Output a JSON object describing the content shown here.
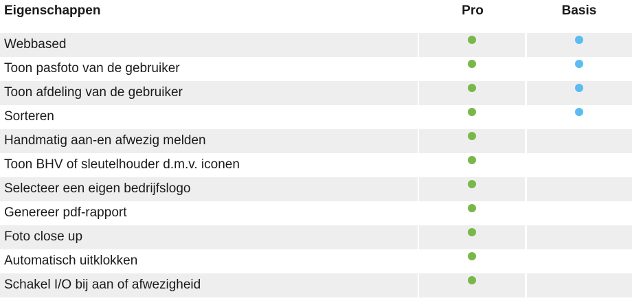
{
  "header": {
    "feature": "Eigenschappen",
    "pro": "Pro",
    "basis": "Basis"
  },
  "colors": {
    "pro_dot": "#7ab648",
    "basis_dot": "#5bbcf0",
    "row_shade": "#eeeeee"
  },
  "rows": [
    {
      "label": "Webbased",
      "pro": true,
      "basis": true
    },
    {
      "label": "Toon pasfoto van de gebruiker",
      "pro": true,
      "basis": true
    },
    {
      "label": "Toon afdeling van de gebruiker",
      "pro": true,
      "basis": true
    },
    {
      "label": "Sorteren",
      "pro": true,
      "basis": true
    },
    {
      "label": "Handmatig aan-en afwezig melden",
      "pro": true,
      "basis": false
    },
    {
      "label": "Toon BHV of sleutelhouder d.m.v. iconen",
      "pro": true,
      "basis": false
    },
    {
      "label": "Selecteer een eigen bedrijfslogo",
      "pro": true,
      "basis": false
    },
    {
      "label": "Genereer pdf-rapport",
      "pro": true,
      "basis": false
    },
    {
      "label": "Foto close up",
      "pro": true,
      "basis": false
    },
    {
      "label": "Automatisch uitklokken",
      "pro": true,
      "basis": false
    },
    {
      "label": "Schakel I/O bij aan of afwezigheid",
      "pro": true,
      "basis": false
    }
  ]
}
